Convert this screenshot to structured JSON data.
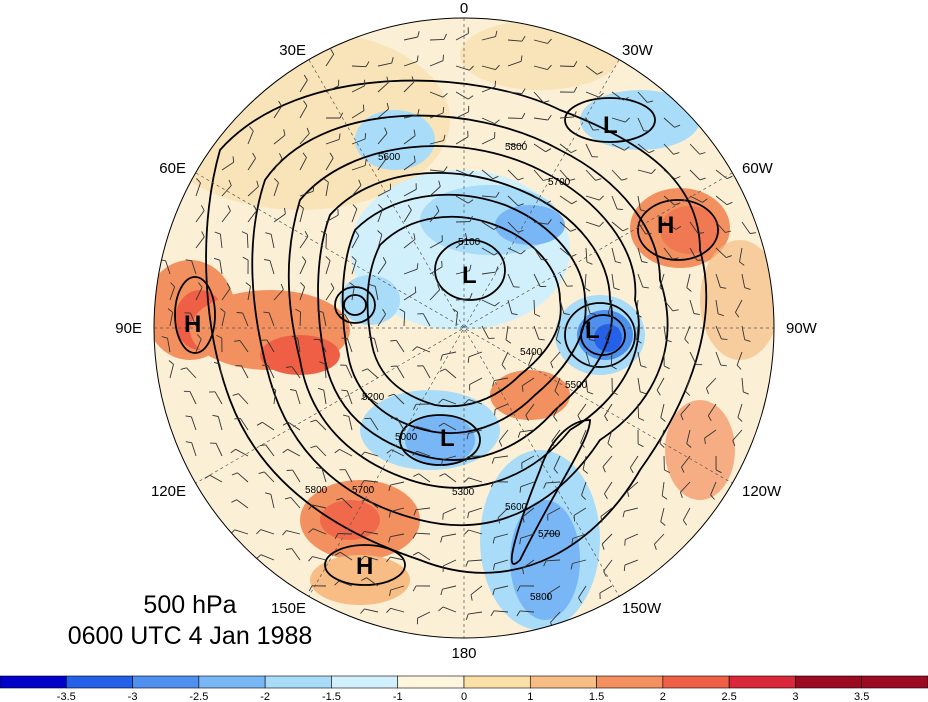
{
  "title": {
    "level": "500 hPa",
    "time": "0600 UTC 4 Jan 1988"
  },
  "longitude_labels": [
    {
      "text": "0",
      "angle_deg": 0
    },
    {
      "text": "30W",
      "angle_deg": 30
    },
    {
      "text": "60W",
      "angle_deg": 60
    },
    {
      "text": "90W",
      "angle_deg": 90
    },
    {
      "text": "120W",
      "angle_deg": 120
    },
    {
      "text": "150W",
      "angle_deg": 150
    },
    {
      "text": "180",
      "angle_deg": 180
    },
    {
      "text": "150E",
      "angle_deg": 210
    },
    {
      "text": "120E",
      "angle_deg": 240
    },
    {
      "text": "90E",
      "angle_deg": 270
    },
    {
      "text": "60E",
      "angle_deg": 300
    },
    {
      "text": "30E",
      "angle_deg": 330
    }
  ],
  "pressure_centers": [
    {
      "label": "L",
      "region": "north atlantic"
    },
    {
      "label": "H",
      "region": "western north atlantic"
    },
    {
      "label": "L",
      "region": "arctic / siberia"
    },
    {
      "label": "L",
      "region": "hudson bay"
    },
    {
      "label": "L",
      "region": "east siberia"
    },
    {
      "label": "H",
      "region": "central asia"
    },
    {
      "label": "H",
      "region": "western pacific"
    }
  ],
  "contour_labels": [
    "5800",
    "5700",
    "5600",
    "5500",
    "5400",
    "5300",
    "5200",
    "5100",
    "5000"
  ],
  "colorbar": {
    "ticks": [
      "-3.5",
      "-3",
      "-2.5",
      "-2",
      "-1.5",
      "-1",
      "0",
      "1",
      "1.5",
      "2",
      "2.5",
      "3",
      "3.5"
    ],
    "colors": [
      "#0000c8",
      "#2460e8",
      "#4f90ee",
      "#78b6f5",
      "#a8dcf8",
      "#d2f0fb",
      "#fdf5dd",
      "#fbe0a8",
      "#f7bd84",
      "#f3905f",
      "#ee5f45",
      "#d8283a",
      "#9c0a22"
    ]
  }
}
